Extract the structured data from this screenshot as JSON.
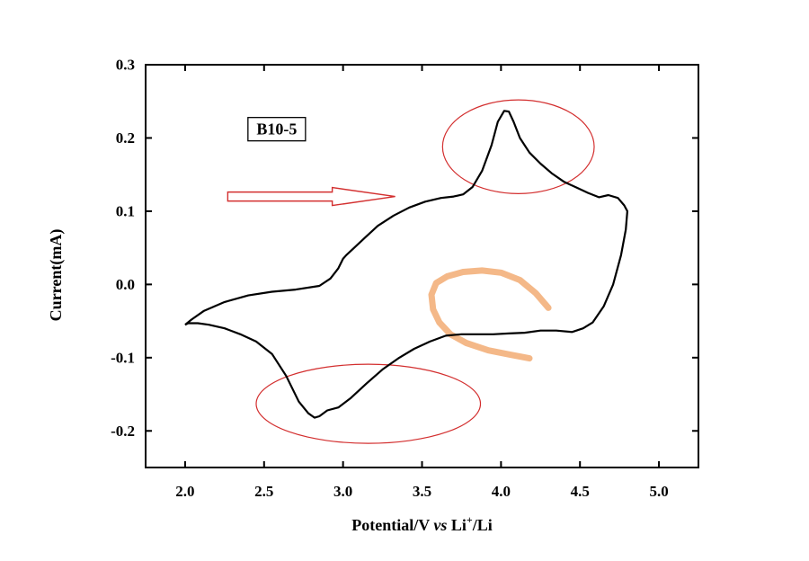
{
  "chart_data": {
    "type": "line",
    "xlabel_parts": {
      "pre": "Potential/V ",
      "italic": "vs",
      "mid": " Li",
      "sup": "+",
      "post": "/Li"
    },
    "ylabel": "Current(mA)",
    "xlim": [
      1.75,
      5.25
    ],
    "ylim": [
      -0.25,
      0.3
    ],
    "xticks": [
      "2.0",
      "2.5",
      "3.0",
      "3.5",
      "4.0",
      "4.5",
      "5.0"
    ],
    "xtick_values": [
      2.0,
      2.5,
      3.0,
      3.5,
      4.0,
      4.5,
      5.0
    ],
    "yticks": [
      "-0.2",
      "-0.1",
      "0.0",
      "0.1",
      "0.2",
      "0.3"
    ],
    "ytick_values": [
      -0.2,
      -0.1,
      0.0,
      0.1,
      0.2,
      0.3
    ],
    "grid": false,
    "legend": "none",
    "annotation_label": "B10-5",
    "annotation_label_pos": [
      2.58,
      0.212
    ],
    "series": [
      {
        "line_color": "#000000",
        "x": [
          2.0,
          2.04,
          2.12,
          2.25,
          2.4,
          2.55,
          2.7,
          2.85,
          2.92,
          2.97,
          3.0,
          3.02,
          3.06,
          3.14,
          3.22,
          3.32,
          3.42,
          3.52,
          3.62,
          3.7,
          3.76,
          3.82,
          3.88,
          3.94,
          3.98,
          4.02,
          4.05,
          4.08,
          4.12,
          4.18,
          4.25,
          4.32,
          4.4,
          4.48,
          4.55,
          4.62,
          4.68,
          4.74,
          4.78,
          4.8,
          4.79,
          4.76,
          4.71,
          4.65,
          4.58,
          4.52,
          4.45,
          4.35,
          4.25,
          4.15,
          4.05,
          3.95,
          3.85,
          3.75,
          3.65,
          3.55,
          3.45,
          3.35,
          3.25,
          3.15,
          3.05,
          2.97,
          2.9,
          2.85,
          2.82,
          2.78,
          2.72,
          2.64,
          2.55,
          2.45,
          2.35,
          2.25,
          2.15,
          2.08,
          2.02,
          2.0
        ],
        "y": [
          -0.055,
          -0.048,
          -0.036,
          -0.024,
          -0.015,
          -0.01,
          -0.007,
          -0.002,
          0.008,
          0.022,
          0.035,
          0.04,
          0.048,
          0.064,
          0.08,
          0.094,
          0.105,
          0.113,
          0.118,
          0.12,
          0.123,
          0.133,
          0.155,
          0.19,
          0.222,
          0.237,
          0.236,
          0.222,
          0.2,
          0.18,
          0.165,
          0.152,
          0.14,
          0.132,
          0.125,
          0.119,
          0.122,
          0.118,
          0.108,
          0.1,
          0.075,
          0.04,
          0.0,
          -0.03,
          -0.052,
          -0.06,
          -0.065,
          -0.063,
          -0.063,
          -0.066,
          -0.067,
          -0.068,
          -0.068,
          -0.068,
          -0.07,
          -0.078,
          -0.088,
          -0.101,
          -0.116,
          -0.135,
          -0.155,
          -0.168,
          -0.172,
          -0.18,
          -0.182,
          -0.176,
          -0.16,
          -0.125,
          -0.095,
          -0.078,
          -0.068,
          -0.06,
          -0.055,
          -0.053,
          -0.053,
          -0.055
        ]
      }
    ],
    "annotations": {
      "arrow": {
        "from": [
          2.27,
          0.12
        ],
        "to": [
          3.33,
          0.12
        ],
        "color": "#d32f2f"
      },
      "circle_top": {
        "center": [
          4.11,
          0.188
        ],
        "rx": 0.48,
        "ry": 0.064,
        "color": "#d32f2f"
      },
      "ellipse_bottom": {
        "center": [
          3.16,
          -0.163
        ],
        "rx": 0.71,
        "ry": 0.054,
        "color": "#d32f2f"
      },
      "scribble": {
        "color": "#f0a060",
        "x": [
          4.3,
          4.22,
          4.12,
          4.0,
          3.88,
          3.76,
          3.66,
          3.59,
          3.56,
          3.57,
          3.61,
          3.68,
          3.78,
          3.92,
          4.06,
          4.18
        ],
        "y": [
          -0.032,
          -0.012,
          0.006,
          0.016,
          0.019,
          0.017,
          0.011,
          0.002,
          -0.014,
          -0.034,
          -0.052,
          -0.068,
          -0.08,
          -0.09,
          -0.096,
          -0.101
        ]
      }
    }
  }
}
